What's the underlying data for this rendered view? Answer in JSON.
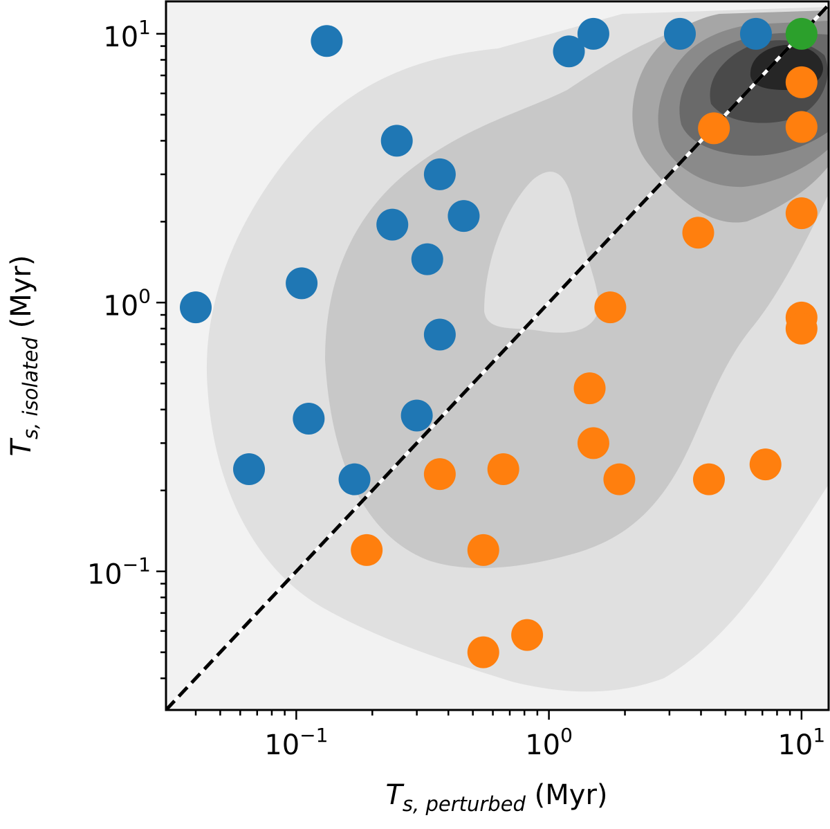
{
  "chart_data": {
    "type": "scatter",
    "title": "",
    "xlabel": {
      "symbol": "T",
      "subscript": "s, perturbed",
      "unit": " (Myr)"
    },
    "ylabel": {
      "symbol": "T",
      "subscript": "s, isolated",
      "unit": " (Myr)"
    },
    "x_scale": "log",
    "y_scale": "log",
    "xlim": [
      0.0305,
      12.8
    ],
    "ylim": [
      0.0305,
      13.2
    ],
    "x_major_ticks": [
      {
        "value": 0.1,
        "base": "10",
        "exp": "−1"
      },
      {
        "value": 1,
        "base": "10",
        "exp": "0"
      },
      {
        "value": 10,
        "base": "10",
        "exp": "1"
      }
    ],
    "y_major_ticks": [
      {
        "value": 0.1,
        "base": "10",
        "exp": "−1"
      },
      {
        "value": 1,
        "base": "10",
        "exp": "0"
      },
      {
        "value": 10,
        "base": "10",
        "exp": "1"
      }
    ],
    "grid": false,
    "legend": "none",
    "reference_line": {
      "style": "dashed",
      "from": [
        0.0305,
        0.0305
      ],
      "to": [
        12.8,
        12.8
      ],
      "color": "#000000"
    },
    "density_levels": [
      "#f2f2f2",
      "#e0e0e0",
      "#c8c8c8",
      "#a6a6a6",
      "#8a8a8a",
      "#6a6a6a",
      "#4a4a4a",
      "#262626"
    ],
    "series": [
      {
        "color": "#1f77b4",
        "points": [
          [
            0.04,
            0.96
          ],
          [
            0.065,
            0.24
          ],
          [
            0.105,
            1.18
          ],
          [
            0.112,
            0.37
          ],
          [
            0.132,
            9.4
          ],
          [
            0.17,
            0.22
          ],
          [
            0.24,
            1.95
          ],
          [
            0.25,
            4.0
          ],
          [
            0.3,
            0.38
          ],
          [
            0.33,
            1.45
          ],
          [
            0.37,
            3.0
          ],
          [
            0.37,
            0.76
          ],
          [
            0.46,
            2.1
          ],
          [
            1.2,
            8.6
          ],
          [
            1.5,
            10.0
          ],
          [
            3.3,
            10.0
          ],
          [
            6.6,
            10.0
          ]
        ]
      },
      {
        "color": "#ff7f0e",
        "points": [
          [
            0.19,
            0.12
          ],
          [
            0.37,
            0.23
          ],
          [
            0.55,
            0.12
          ],
          [
            0.55,
            0.05
          ],
          [
            0.66,
            0.24
          ],
          [
            0.82,
            0.058
          ],
          [
            1.45,
            0.48
          ],
          [
            1.5,
            0.3
          ],
          [
            1.75,
            0.96
          ],
          [
            1.9,
            0.22
          ],
          [
            3.9,
            1.82
          ],
          [
            4.3,
            0.22
          ],
          [
            4.5,
            4.45
          ],
          [
            7.2,
            0.25
          ],
          [
            10.0,
            6.6
          ],
          [
            10.0,
            4.5
          ],
          [
            10.0,
            2.15
          ],
          [
            10.0,
            0.88
          ],
          [
            10.0,
            0.8
          ]
        ]
      },
      {
        "color": "#2ca02c",
        "points": [
          [
            10.0,
            10.0
          ]
        ]
      }
    ]
  }
}
